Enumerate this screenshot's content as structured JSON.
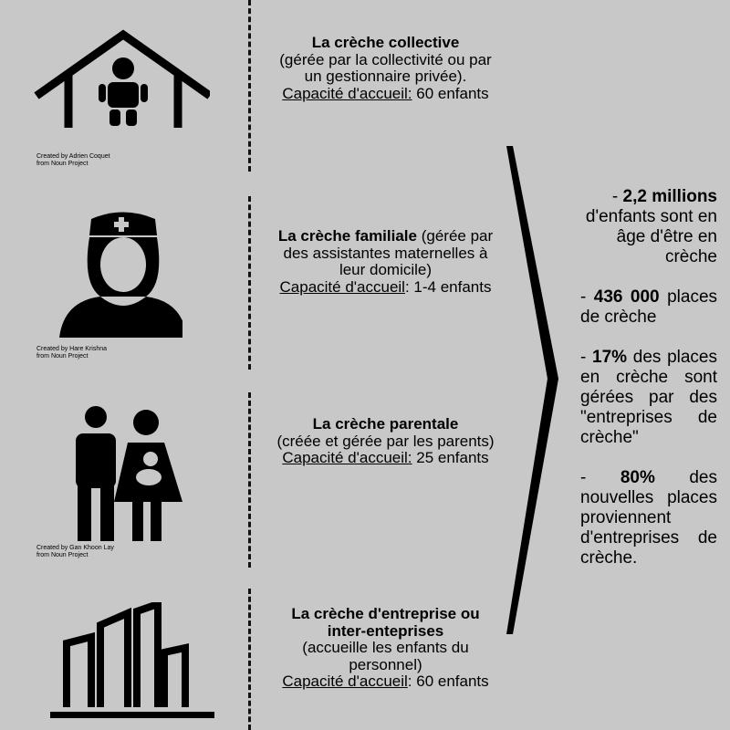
{
  "types": [
    {
      "title": "La crèche collective",
      "detail": "(gérée par la collectivité ou par un gestionnaire privée).",
      "cap_label": "Capacité d'accueil:",
      "cap_value": " 60 enfants",
      "credit1": "Created by Adrien Coquet",
      "credit2": "from Noun Project",
      "icon": "house-child-icon"
    },
    {
      "title": "La crèche familiale",
      "detail": " (gérée par des assistantes maternelles à leur domicile)",
      "cap_label": "Capacité d'accueil",
      "cap_value": ": 1-4 enfants",
      "credit1": "Created by Hare Krishna",
      "credit2": "from Noun Project",
      "icon": "nurse-icon"
    },
    {
      "title": "La crèche parentale",
      "detail": "(créée et gérée par les parents)",
      "cap_label": "Capacité d'accueil:",
      "cap_value": " 25 enfants",
      "credit1": "Created by Gan Khoon Lay",
      "credit2": "from Noun Project",
      "icon": "family-icon"
    },
    {
      "title": "La crèche d'entreprise ou inter-enteprises",
      "detail": "(accueille les enfants du personnel)",
      "cap_label": "Capacité d'accueil",
      "cap_value": ": 60 enfants",
      "icon": "buildings-icon"
    }
  ],
  "stats": [
    {
      "prefix": "- ",
      "bold": "2,2 millions",
      "text": " d'enfants sont en âge d'être en crèche"
    },
    {
      "prefix": "- ",
      "bold": "436 000",
      "text": " places de crèche"
    },
    {
      "prefix": "- ",
      "bold": "17%",
      "text": " des places en crèche sont gérées par des \"entreprises de crèche\""
    },
    {
      "prefix": "- ",
      "bold": "80%",
      "text": " des nouvelles places proviennent d'entreprises de crèche."
    }
  ]
}
